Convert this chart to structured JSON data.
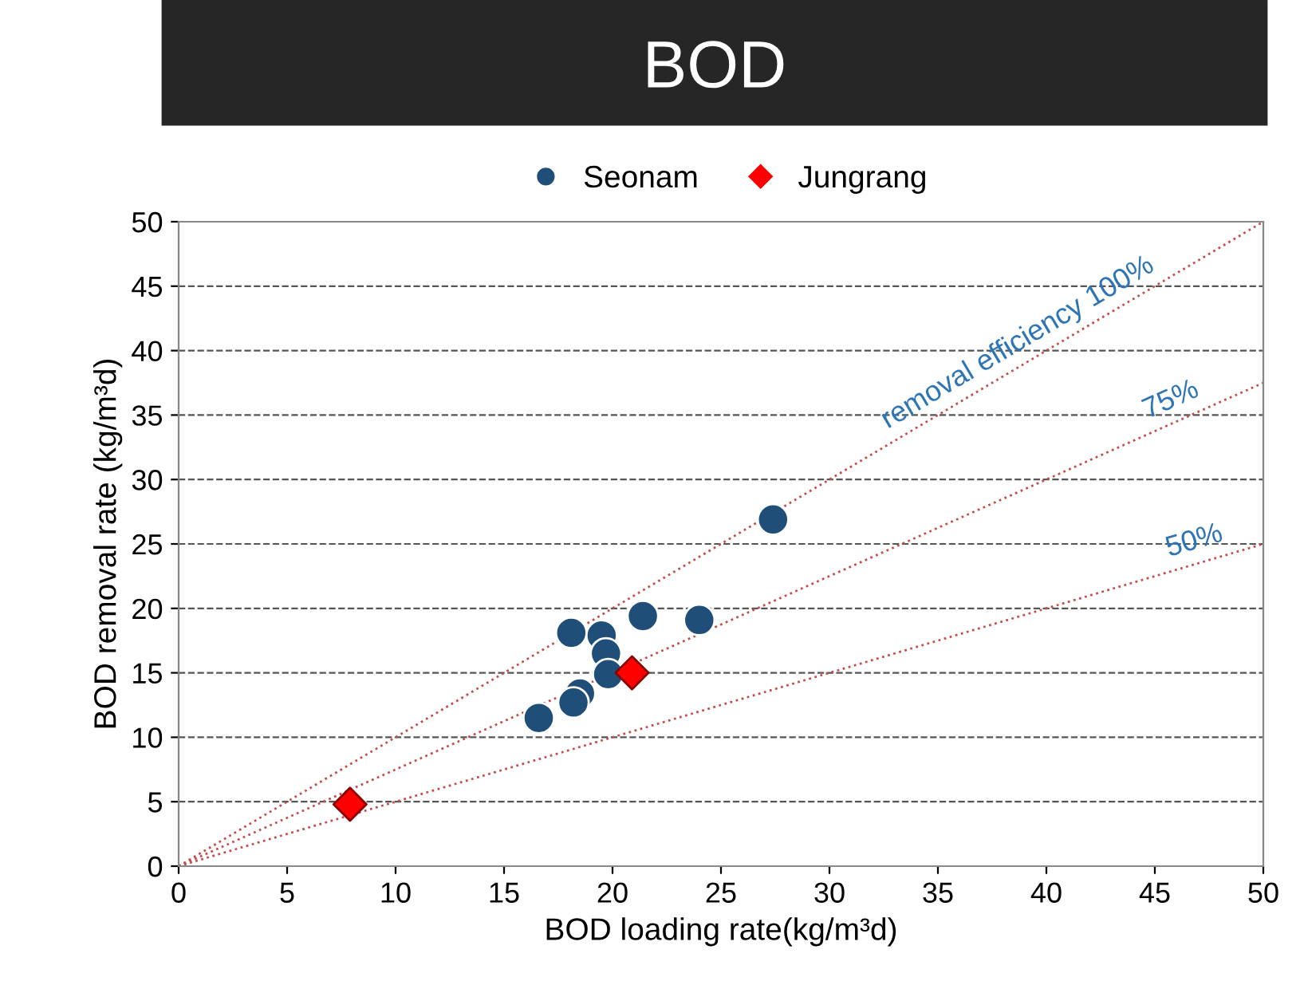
{
  "chart_data": {
    "type": "scatter",
    "title": "BOD",
    "xlabel": "BOD loading rate(kg/m³d)",
    "ylabel": "BOD removal rate (kg/m³d)",
    "xlim": [
      0,
      50
    ],
    "ylim": [
      0,
      50
    ],
    "xticks": [
      0,
      5,
      10,
      15,
      20,
      25,
      30,
      35,
      40,
      45,
      50
    ],
    "yticks": [
      0,
      5,
      10,
      15,
      20,
      25,
      30,
      35,
      40,
      45,
      50
    ],
    "grid": "y",
    "legend": "top",
    "series": [
      {
        "name": "Seonam",
        "marker": "circle",
        "color": "#1f4e79",
        "x": [
          27.4,
          24.0,
          21.4,
          18.1,
          19.5,
          19.7,
          19.8,
          18.5,
          18.2,
          16.6
        ],
        "values": [
          26.9,
          19.1,
          19.4,
          18.1,
          17.9,
          16.5,
          14.9,
          13.4,
          12.7,
          11.5
        ]
      },
      {
        "name": "Jungrang",
        "marker": "diamond",
        "color": "#ff0000",
        "x": [
          20.9,
          7.9
        ],
        "values": [
          15.0,
          4.8
        ]
      },
      {
        "type": "line",
        "line_style": "dotted",
        "color": "#c0504d",
        "x": [
          0,
          50
        ],
        "values": [
          0,
          50
        ]
      },
      {
        "type": "line",
        "line_style": "dotted",
        "color": "#c0504d",
        "x": [
          0,
          50
        ],
        "values": [
          0,
          37.5
        ]
      },
      {
        "type": "line",
        "line_style": "dotted",
        "color": "#c0504d",
        "x": [
          0,
          50
        ],
        "values": [
          0,
          25
        ]
      }
    ],
    "annotations": [
      {
        "text": "removal efficiency 100%",
        "x": 39,
        "y": 39
      },
      {
        "text": "75%",
        "x": 46,
        "y": 34.5
      },
      {
        "text": "50%",
        "x": 47,
        "y": 23.5
      }
    ]
  }
}
